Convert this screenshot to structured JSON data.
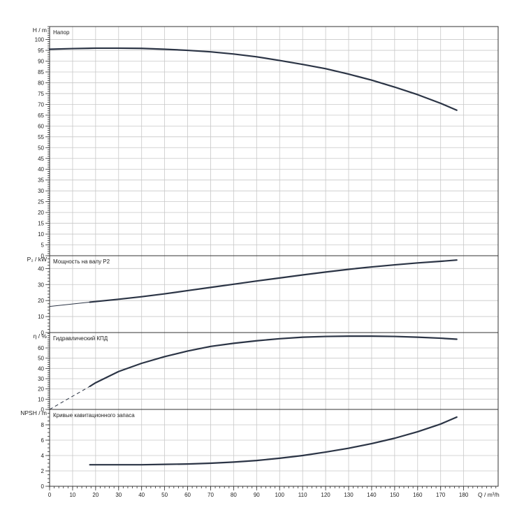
{
  "chart_data": {
    "type": "line",
    "x_axis": {
      "label": "Q / m³/h",
      "ticks": [
        "0",
        "10",
        "20",
        "30",
        "40",
        "50",
        "60",
        "70",
        "80",
        "90",
        "100",
        "110",
        "120",
        "130",
        "140",
        "150",
        "160",
        "170",
        "180"
      ],
      "range": [
        0,
        195
      ],
      "minor_step": 2
    },
    "grid": true,
    "panels": [
      {
        "id": "head",
        "ylabel": "H / m",
        "title": "Напор",
        "ylim": [
          0,
          106
        ],
        "ticks": [
          "0",
          "5",
          "10",
          "15",
          "20",
          "25",
          "30",
          "35",
          "40",
          "45",
          "50",
          "55",
          "60",
          "65",
          "70",
          "75",
          "80",
          "85",
          "90",
          "95",
          "100"
        ],
        "minor_step": 1,
        "series": [
          {
            "line_color": "#2b3445",
            "style": "solid",
            "x": [
              0,
              10,
              20,
              30,
              40,
              50,
              60,
              70,
              80,
              90,
              100,
              110,
              120,
              130,
              140,
              150,
              160,
              170,
              177
            ],
            "y": [
              95.5,
              95.8,
              96,
              96,
              95.9,
              95.5,
              95,
              94.3,
              93.3,
              92,
              90.3,
              88.5,
              86.5,
              84,
              81.2,
              78,
              74.5,
              70.5,
              67.3
            ]
          }
        ]
      },
      {
        "id": "power",
        "ylabel": "P₂ / kW",
        "title": "Мощность на валу P2",
        "ylim": [
          0,
          48
        ],
        "ticks": [
          "0",
          "10",
          "20",
          "30",
          "40"
        ],
        "minor_step": 2,
        "series": [
          {
            "line_color": "#2b3445",
            "style": "thin",
            "x": [
              0,
              17.5
            ],
            "y": [
              16.3,
              19.0
            ]
          },
          {
            "line_color": "#2b3445",
            "style": "solid",
            "x": [
              17.5,
              30,
              40,
              50,
              60,
              70,
              80,
              90,
              100,
              110,
              120,
              130,
              140,
              150,
              160,
              170,
              177
            ],
            "y": [
              19.0,
              20.8,
              22.4,
              24.2,
              26.2,
              28.2,
              30.2,
              32.2,
              34.1,
              36.0,
              37.8,
              39.5,
              41.0,
              42.3,
              43.5,
              44.5,
              45.3
            ]
          }
        ]
      },
      {
        "id": "efficiency",
        "ylabel": "η / %",
        "title": "Гидравлический КПД",
        "ylim": [
          0,
          75
        ],
        "ticks": [
          "0",
          "10",
          "20",
          "30",
          "40",
          "50",
          "60"
        ],
        "minor_step": 2,
        "series": [
          {
            "line_color": "#2b3445",
            "style": "dashed",
            "x": [
              0,
              17.5
            ],
            "y": [
              0,
              22.5
            ]
          },
          {
            "line_color": "#2b3445",
            "style": "solid",
            "x": [
              17.5,
              20,
              30,
              40,
              50,
              60,
              70,
              80,
              90,
              100,
              110,
              120,
              130,
              140,
              150,
              160,
              170,
              177
            ],
            "y": [
              22.5,
              26,
              37,
              45,
              51.5,
              57,
              61.5,
              64.5,
              67,
              69,
              70.5,
              71.2,
              71.5,
              71.5,
              71.2,
              70.5,
              69.5,
              68.5
            ]
          }
        ]
      },
      {
        "id": "npsh",
        "ylabel": "NPSH / m",
        "title": "Кривые кавитационного запаса",
        "ylim": [
          0,
          10
        ],
        "ticks": [
          "0",
          "2",
          "4",
          "6",
          "8"
        ],
        "minor_step": 0.5,
        "series": [
          {
            "line_color": "#2b3445",
            "style": "solid",
            "x": [
              17.5,
              30,
              40,
              50,
              60,
              70,
              80,
              90,
              100,
              110,
              120,
              130,
              140,
              150,
              160,
              170,
              177
            ],
            "y": [
              2.8,
              2.8,
              2.8,
              2.85,
              2.9,
              3.0,
              3.15,
              3.35,
              3.65,
              4.0,
              4.45,
              4.95,
              5.55,
              6.25,
              7.1,
              8.1,
              9.0
            ]
          }
        ]
      }
    ]
  }
}
